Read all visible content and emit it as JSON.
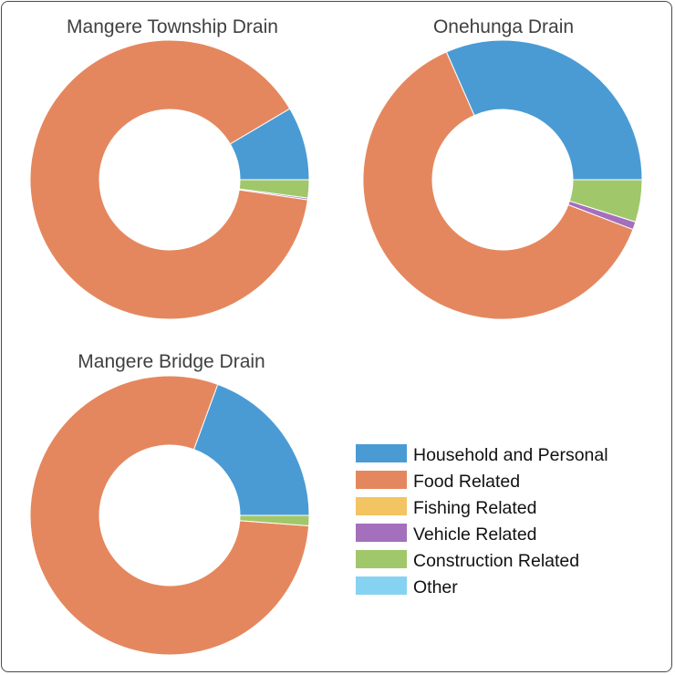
{
  "chart_data": [
    {
      "type": "pie",
      "donut": true,
      "title": "Mangere Township Drain",
      "categories": [
        "Household and Personal",
        "Food Related",
        "Fishing Related",
        "Vehicle Related",
        "Construction Related",
        "Other"
      ],
      "values": [
        8.5,
        89.2,
        0,
        0.2,
        2.1,
        0
      ]
    },
    {
      "type": "pie",
      "donut": true,
      "title": "Onehunga Drain",
      "categories": [
        "Household and Personal",
        "Food Related",
        "Fishing Related",
        "Vehicle Related",
        "Construction Related",
        "Other"
      ],
      "values": [
        31.6,
        62.6,
        0,
        0.9,
        4.9,
        0
      ]
    },
    {
      "type": "pie",
      "donut": true,
      "title": "Mangere Bridge Drain",
      "categories": [
        "Household and Personal",
        "Food Related",
        "Fishing Related",
        "Vehicle Related",
        "Construction Related",
        "Other"
      ],
      "values": [
        19.4,
        79.4,
        0,
        0,
        1.2,
        0
      ]
    }
  ],
  "legend": {
    "placement": "bottom-right",
    "items": [
      {
        "label": "Household and Personal",
        "color": "#4a9bd4"
      },
      {
        "label": "Food Related",
        "color": "#e5875e"
      },
      {
        "label": "Fishing Related",
        "color": "#f2c462"
      },
      {
        "label": "Vehicle Related",
        "color": "#a46fbc"
      },
      {
        "label": "Construction Related",
        "color": "#a1c76b"
      },
      {
        "label": "Other",
        "color": "#86d3f1"
      }
    ]
  }
}
